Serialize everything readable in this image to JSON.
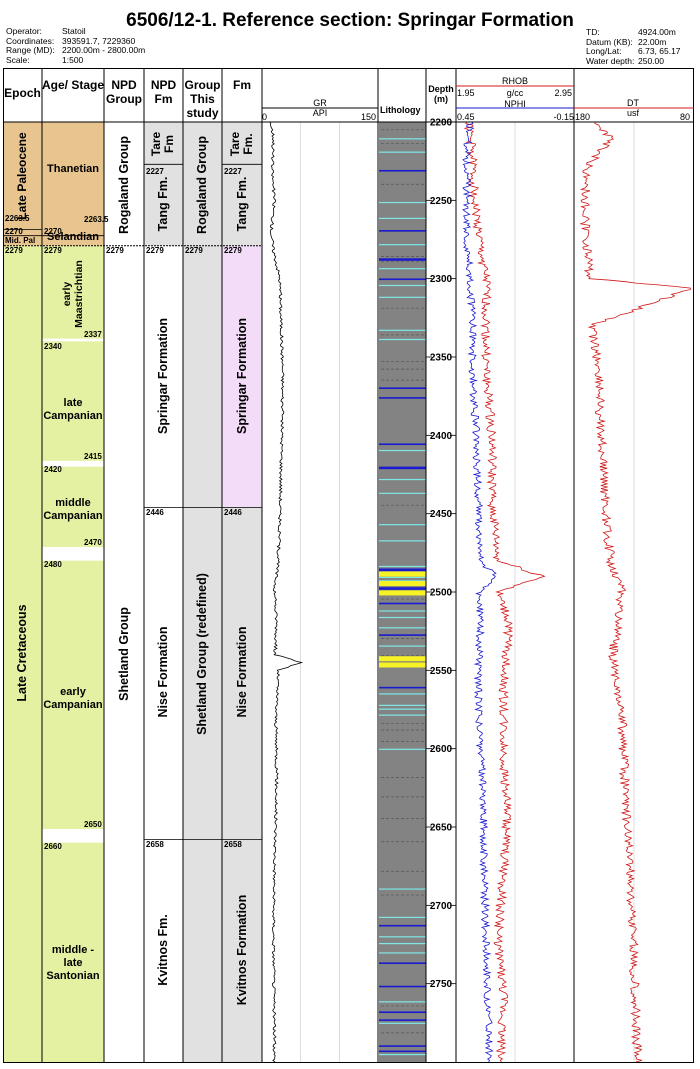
{
  "header": {
    "title": "6506/12-1. Reference section: Springar Formation",
    "left": [
      {
        "k": "Operator:",
        "v": "Statoil"
      },
      {
        "k": "Coordinates:",
        "v": "393591.7, 7229360"
      },
      {
        "k": "Range (MD):",
        "v": "2200.00m - 2800.00m"
      },
      {
        "k": "Scale:",
        "v": "1:500"
      }
    ],
    "right": [
      {
        "k": "TD:",
        "v": "4924.00m"
      },
      {
        "k": "Datum (KB):",
        "v": "22.00m"
      },
      {
        "k": "Long/Lat:",
        "v": "6.73, 65.17"
      },
      {
        "k": "Water depth:",
        "v": "250.00"
      }
    ]
  },
  "columns": {
    "epoch": "Epoch",
    "age": "Age/ Stage",
    "npd_group": "NPD Group",
    "npd_fm": "NPD Fm",
    "group_study": "Group This study",
    "fm_study": "Fm",
    "lithology": "Lithology",
    "depth": "Depth (m)"
  },
  "colors": {
    "paleocene": "#e8c48f",
    "cretaceous": "#e4f0a2",
    "grey": "#e1e1e1",
    "springar": "#f3dcf7",
    "lith": "#838383",
    "yellow": "#f7f225",
    "blue": "#1a1ad0",
    "cyan": "#7ee8e8"
  },
  "epoch": {
    "late_paleocene": "Late Paleocene",
    "mid_pal": "Mid. Pal",
    "late_cretaceous": "Late Cretaceous",
    "d1": "2263.5",
    "d2": "2270",
    "d3": "2279"
  },
  "stages": [
    {
      "name": "Thanetian",
      "top": null,
      "base": "2263.5",
      "color": "paleocene"
    },
    {
      "name": "Selandian",
      "top": "2270",
      "base": null,
      "color": "paleocene"
    },
    {
      "name": "early Maastrichtian",
      "top": "2279",
      "base": "2337",
      "color": "cretaceous"
    },
    {
      "name": "late Campanian",
      "top": "2340",
      "base": "2415",
      "color": "cretaceous"
    },
    {
      "name": "middle Campanian",
      "top": "2420",
      "base": "2470",
      "color": "cretaceous"
    },
    {
      "name": "early Campanian",
      "top": "2480",
      "base": "2650",
      "color": "cretaceous"
    },
    {
      "name": "middle - late Santonian",
      "top": "2660",
      "base": null,
      "color": "cretaceous"
    }
  ],
  "npd_group": {
    "rogaland": "Rogaland Group",
    "shetland": "Shetland Group",
    "top2": "2279"
  },
  "npd_fm": {
    "tare": "Tare Fm",
    "tang": "Tang Fm.",
    "springar": "Springar Formation",
    "nise": "Nise Formation",
    "kvitnos": "Kvitnos Fm.",
    "d_tang": "2227",
    "d_springar": "2279",
    "d_nise": "2446",
    "d_kvitnos": "2658"
  },
  "group_study": {
    "rogaland": "Rogaland Group",
    "shetland": "Shetland Group (redefined)",
    "top2": "2279"
  },
  "fm_study": {
    "tare": "Tare Fm.",
    "tang": "Tang Fm.",
    "springar": "Springar Formation",
    "nise": "Nise Formation",
    "kvitnos": "Kvitnos Formation",
    "d_tang": "2227",
    "d_springar": "2279",
    "d_nise": "2446",
    "d_kvitnos": "2658"
  },
  "gr": {
    "name": "GR",
    "unit": "API",
    "min": "0",
    "max": "150"
  },
  "rhob": {
    "name": "RHOB",
    "unit": "g/cc",
    "min": "1.95",
    "max": "2.95"
  },
  "nphi": {
    "name": "NPHI",
    "min": "0.45",
    "max": "-0.15"
  },
  "dt": {
    "name": "DT",
    "unit": "usf",
    "min": "180",
    "max": "80"
  },
  "chart_data": {
    "type": "line",
    "y_axis": {
      "label": "Depth (m)",
      "range": [
        2200,
        2800
      ],
      "ticks": [
        2200,
        2250,
        2300,
        2350,
        2400,
        2450,
        2500,
        2550,
        2600,
        2650,
        2700,
        2750
      ],
      "tick_labels": [
        "2200",
        "2250",
        "2300",
        "2350",
        "2400",
        "2450",
        "2500",
        "2550",
        "2600",
        "2650",
        "2700",
        "2750"
      ]
    },
    "series": [
      {
        "name": "GR",
        "unit": "API",
        "xlim": [
          0,
          150
        ],
        "color": "#000000",
        "depth": [
          2200,
          2210,
          2230,
          2250,
          2270,
          2280,
          2300,
          2330,
          2360,
          2400,
          2440,
          2480,
          2500,
          2520,
          2540,
          2545,
          2550,
          2580,
          2620,
          2660,
          2700,
          2740,
          2780,
          2800
        ],
        "values": [
          10,
          14,
          12,
          15,
          11,
          13,
          22,
          24,
          26,
          25,
          23,
          20,
          15,
          18,
          16,
          50,
          20,
          17,
          18,
          16,
          14,
          14,
          15,
          15
        ]
      },
      {
        "name": "RHOB",
        "unit": "g/cc",
        "xlim": [
          1.95,
          2.95
        ],
        "color": "#d01818",
        "depth": [
          2200,
          2220,
          2250,
          2280,
          2300,
          2330,
          2360,
          2400,
          2440,
          2480,
          2490,
          2500,
          2520,
          2560,
          2600,
          2640,
          2680,
          2720,
          2760,
          2800
        ],
        "values": [
          2.05,
          2.08,
          2.1,
          2.15,
          2.2,
          2.2,
          2.2,
          2.25,
          2.25,
          2.3,
          2.7,
          2.3,
          2.4,
          2.35,
          2.35,
          2.38,
          2.35,
          2.3,
          2.35,
          2.32
        ]
      },
      {
        "name": "NPHI",
        "xlim": [
          0.45,
          -0.15
        ],
        "color": "#1a1ad0",
        "depth": [
          2200,
          2220,
          2250,
          2280,
          2300,
          2330,
          2360,
          2400,
          2440,
          2480,
          2490,
          2500,
          2520,
          2560,
          2600,
          2640,
          2680,
          2720,
          2760,
          2800
        ],
        "values": [
          0.38,
          0.4,
          0.4,
          0.4,
          0.38,
          0.37,
          0.37,
          0.35,
          0.34,
          0.33,
          0.25,
          0.33,
          0.33,
          0.34,
          0.33,
          0.31,
          0.31,
          0.3,
          0.29,
          0.28
        ]
      },
      {
        "name": "DT",
        "unit": "usf",
        "xlim": [
          180,
          80
        ],
        "color": "#d01818",
        "depth": [
          2200,
          2210,
          2230,
          2260,
          2300,
          2306,
          2330,
          2360,
          2400,
          2440,
          2480,
          2500,
          2540,
          2580,
          2620,
          2660,
          2700,
          2740,
          2780,
          2800
        ],
        "values": [
          165,
          150,
          170,
          172,
          168,
          80,
          166,
          160,
          158,
          155,
          150,
          140,
          148,
          140,
          138,
          135,
          132,
          130,
          128,
          127
        ]
      }
    ]
  }
}
